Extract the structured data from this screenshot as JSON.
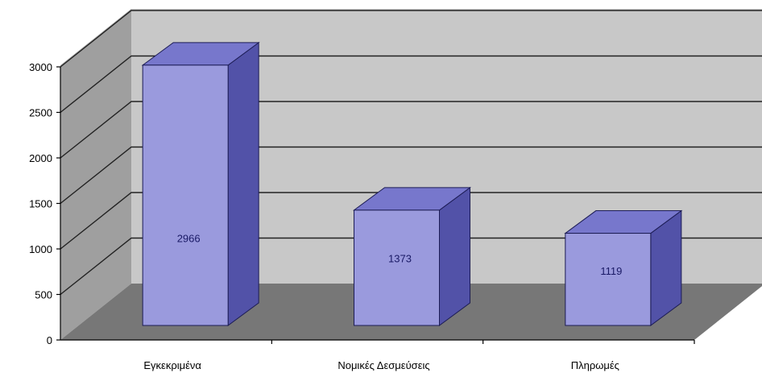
{
  "chart_data": {
    "type": "bar",
    "title": "",
    "xlabel": "",
    "ylabel": "",
    "categories": [
      "Εγκεκριμένα",
      "Νομικές Δεσμεύσεις",
      "Πληρωμές"
    ],
    "values": [
      2966,
      1373,
      1119
    ],
    "data_labels": [
      "2966",
      "1373",
      "1119"
    ],
    "ylim": [
      0,
      3000
    ],
    "yticks": [
      0,
      500,
      1000,
      1500,
      2000,
      2500,
      3000
    ],
    "grid": true,
    "legend": "none",
    "style": "3d-column",
    "colors": {
      "bar_front": "#9a9add",
      "bar_top": "#7777cc",
      "bar_side": "#5252a8",
      "bar_outline": "#1c1c55",
      "back_wall": "#c8c8c8",
      "side_wall": "#9f9f9f",
      "floor": "#777777",
      "gridline": "#222222"
    }
  }
}
